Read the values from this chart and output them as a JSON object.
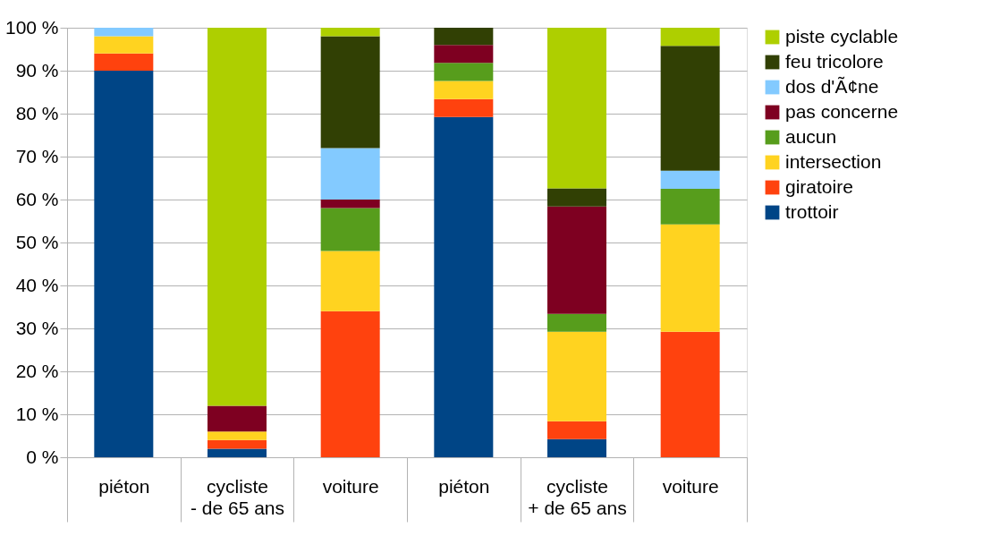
{
  "chart_data": {
    "type": "bar",
    "stacked": true,
    "categories": [
      "piéton",
      "cycliste\n- de 65 ans",
      "voiture",
      "piéton",
      "cycliste\n+ de 65 ans",
      "voiture"
    ],
    "series": [
      {
        "name": "trottoir",
        "color": "#004586",
        "values": [
          90,
          2,
          0,
          79.2,
          4.2,
          0
        ]
      },
      {
        "name": "giratoire",
        "color": "#ff420e",
        "values": [
          4,
          2,
          34,
          4.2,
          4.2,
          29.2
        ]
      },
      {
        "name": "intersection",
        "color": "#ffd320",
        "values": [
          4,
          2,
          14,
          4.2,
          20.8,
          25
        ]
      },
      {
        "name": "aucun",
        "color": "#579d1c",
        "values": [
          0,
          0,
          10,
          4.2,
          4.2,
          8.3
        ]
      },
      {
        "name": "pas concerne",
        "color": "#7e0021",
        "values": [
          0,
          6,
          2,
          4.2,
          25,
          0
        ]
      },
      {
        "name": "dos d'Ã¢ne",
        "color": "#83caff",
        "values": [
          2,
          0,
          12,
          0,
          0,
          4.2
        ]
      },
      {
        "name": "feu tricolore",
        "color": "#314004",
        "values": [
          0,
          0,
          26,
          4.0,
          4.2,
          29.1
        ]
      },
      {
        "name": "piste cyclable",
        "color": "#aecf00",
        "values": [
          0,
          88,
          2,
          0,
          37.4,
          4.2
        ]
      }
    ],
    "ylim": [
      0,
      100
    ],
    "yticks": [
      {
        "value": 0,
        "label": "0 %"
      },
      {
        "value": 10,
        "label": "10 %"
      },
      {
        "value": 20,
        "label": "20 %"
      },
      {
        "value": 30,
        "label": "30 %"
      },
      {
        "value": 40,
        "label": "40 %"
      },
      {
        "value": 50,
        "label": "50 %"
      },
      {
        "value": 60,
        "label": "60 %"
      },
      {
        "value": 70,
        "label": "70 %"
      },
      {
        "value": 80,
        "label": "80 %"
      },
      {
        "value": 90,
        "label": "90 %"
      },
      {
        "value": 100,
        "label": "100 %"
      }
    ],
    "grid": "y",
    "legend": "right"
  }
}
